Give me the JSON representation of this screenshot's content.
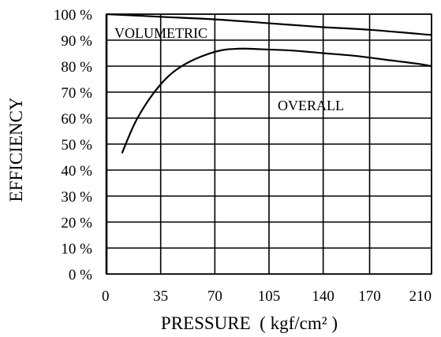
{
  "chart_data": {
    "type": "line",
    "xlabel": "PRESSURE  ( kgf/cm² )",
    "ylabel": "EFFICIENCY",
    "x_ticks": [
      0,
      35,
      70,
      105,
      140,
      170,
      210
    ],
    "x_tick_labels": [
      "0",
      "35",
      "70",
      "105",
      "140",
      "170",
      "210"
    ],
    "y_ticks": [
      0,
      10,
      20,
      30,
      40,
      50,
      60,
      70,
      80,
      90,
      100
    ],
    "y_tick_labels": [
      "0 %",
      "10 %",
      "20 %",
      "30 %",
      "40 %",
      "50 %",
      "60 %",
      "70 %",
      "80 %",
      "90 %",
      "100 %"
    ],
    "xlim": [
      0,
      210
    ],
    "ylim": [
      0,
      100
    ],
    "grid": true,
    "series": [
      {
        "name": "VOLUMETRIC",
        "x": [
          0,
          35,
          70,
          105,
          140,
          170,
          210
        ],
        "y": [
          100,
          99,
          98,
          96.5,
          95,
          94,
          92
        ]
      },
      {
        "name": "OVERALL",
        "x": [
          10,
          20,
          35,
          50,
          70,
          85,
          100,
          120,
          140,
          160,
          180,
          200,
          210
        ],
        "y": [
          46.5,
          60,
          73,
          80.5,
          85.5,
          86.7,
          86.5,
          86,
          85,
          84,
          82.5,
          81,
          80
        ]
      }
    ]
  }
}
